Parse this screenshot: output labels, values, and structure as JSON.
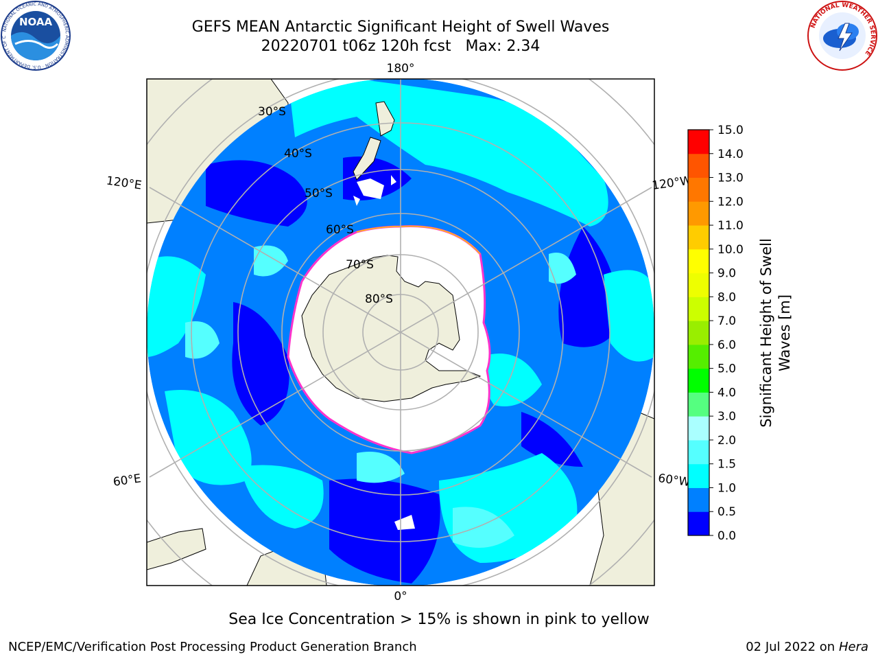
{
  "title": {
    "line1": "GEFS MEAN Antarctic Significant Height of Swell Waves",
    "line2": "20220701 t06z 120h fcst   Max: 2.34"
  },
  "map": {
    "projection": "south-polar-stereographic",
    "longitude_labels": [
      "180°",
      "120°E",
      "120°W",
      "60°E",
      "60°W",
      "0°"
    ],
    "latitude_labels": [
      "30°S",
      "40°S",
      "50°S",
      "60°S",
      "70°S",
      "80°S"
    ],
    "colors": {
      "land": "#efefdc",
      "sea_ice": "#ffffff",
      "ice_edge": "#ff33cc",
      "grid": "#b0b0b0"
    }
  },
  "colorbar": {
    "label_line1": "Significant Height of Swell",
    "label_line2": "Waves [m]",
    "ticks": [
      "0.0",
      "0.5",
      "1.0",
      "1.5",
      "2.0",
      "3.0",
      "4.0",
      "5.0",
      "6.0",
      "7.0",
      "8.0",
      "9.0",
      "10.0",
      "11.0",
      "12.0",
      "13.0",
      "14.0",
      "15.0"
    ],
    "colors": [
      "#0000ff",
      "#0080ff",
      "#00ffff",
      "#55ffff",
      "#aaffff",
      "#55ff80",
      "#00ff00",
      "#55ee00",
      "#99ee00",
      "#ccff00",
      "#eeff00",
      "#ffff00",
      "#ffcc00",
      "#ff9900",
      "#ff7700",
      "#ff5500",
      "#ff0000"
    ]
  },
  "footer": {
    "note": "Sea Ice Concentration > 15% is shown in pink to yellow",
    "left": "NCEP/EMC/Verification Post Processing Product Generation Branch",
    "right_date": "02 Jul 2022 on ",
    "right_host": "Hera"
  },
  "logos": {
    "noaa_text": "NOAA",
    "noaa_ring": "NATIONAL OCEANIC AND ATMOSPHERIC ADMINISTRATION · U.S. DEPARTMENT OF COMMERCE",
    "nws_ring": "NATIONAL WEATHER SERVICE"
  }
}
